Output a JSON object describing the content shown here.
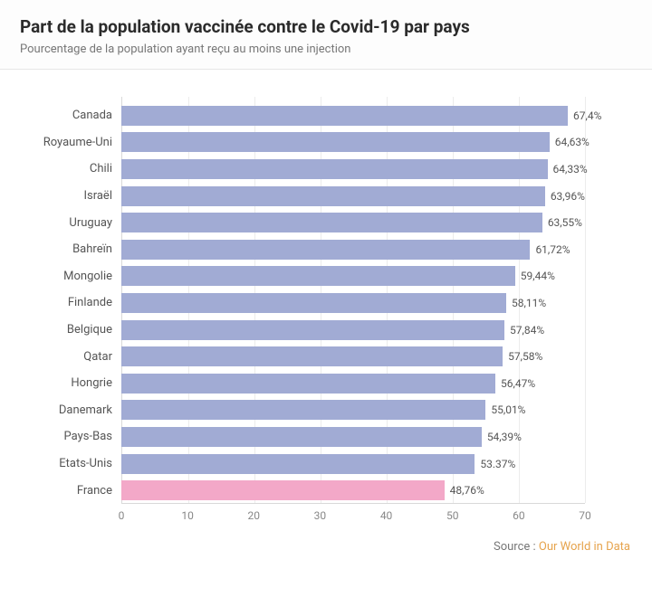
{
  "header": {
    "title": "Part de la population vaccinée contre le Covid-19 par pays",
    "subtitle": "Pourcentage de la population ayant reçu au moins une injection"
  },
  "chart": {
    "type": "bar-horizontal",
    "xmin": 0,
    "xmax": 70,
    "xtick_step": 10,
    "xticks": [
      0,
      10,
      20,
      30,
      40,
      50,
      60,
      70
    ],
    "bar_color": "#a1abd4",
    "highlight_color": "#f3a8c8",
    "gridline_color": "#ececec",
    "axis_color": "#d9d9d9",
    "background_color": "#ffffff",
    "label_fontsize": 13,
    "value_fontsize": 12,
    "tick_fontsize": 12,
    "data": [
      {
        "label": "Canada",
        "value": 67.4,
        "display": "67,4%",
        "highlight": false
      },
      {
        "label": "Royaume-Uni",
        "value": 64.63,
        "display": "64,63%",
        "highlight": false
      },
      {
        "label": "Chili",
        "value": 64.33,
        "display": "64,33%",
        "highlight": false
      },
      {
        "label": "Israël",
        "value": 63.96,
        "display": "63,96%",
        "highlight": false
      },
      {
        "label": "Uruguay",
        "value": 63.55,
        "display": "63,55%",
        "highlight": false
      },
      {
        "label": "Bahreïn",
        "value": 61.72,
        "display": "61,72%",
        "highlight": false
      },
      {
        "label": "Mongolie",
        "value": 59.44,
        "display": "59,44%",
        "highlight": false
      },
      {
        "label": "Finlande",
        "value": 58.11,
        "display": "58,11%",
        "highlight": false
      },
      {
        "label": "Belgique",
        "value": 57.84,
        "display": "57,84%",
        "highlight": false
      },
      {
        "label": "Qatar",
        "value": 57.58,
        "display": "57,58%",
        "highlight": false
      },
      {
        "label": "Hongrie",
        "value": 56.47,
        "display": "56,47%",
        "highlight": false
      },
      {
        "label": "Danemark",
        "value": 55.01,
        "display": "55,01%",
        "highlight": false
      },
      {
        "label": "Pays-Bas",
        "value": 54.39,
        "display": "54,39%",
        "highlight": false
      },
      {
        "label": "Etats-Unis",
        "value": 53.37,
        "display": "53.37%",
        "highlight": false
      },
      {
        "label": "France",
        "value": 48.76,
        "display": "48,76%",
        "highlight": true
      }
    ]
  },
  "footer": {
    "prefix": "Source : ",
    "link_text": "Our World in Data"
  }
}
